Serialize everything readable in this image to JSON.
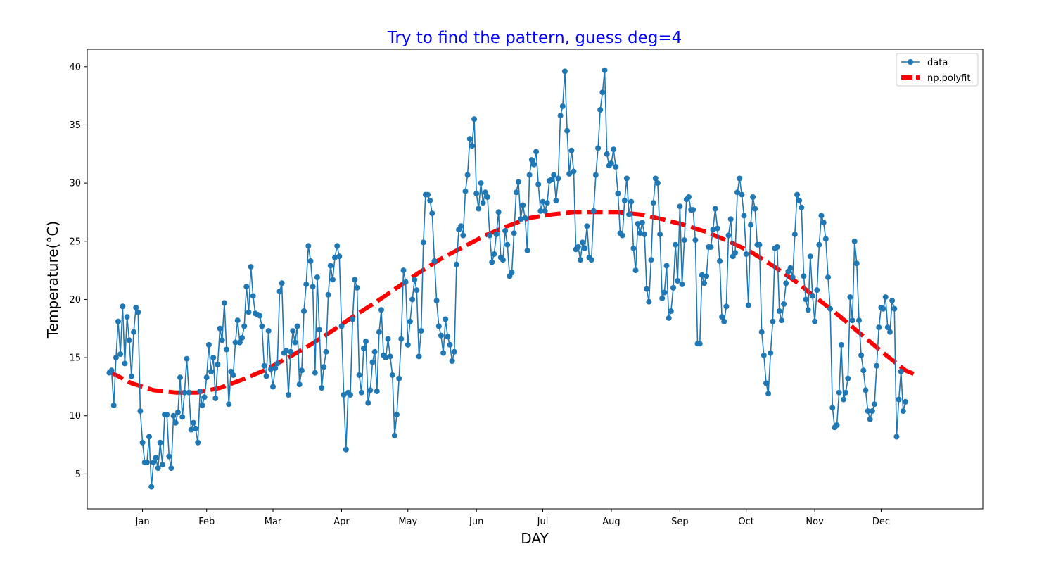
{
  "chart_data": {
    "type": "line",
    "title": "Try to find the pattern, guess deg=4",
    "title_color": "#0000ff",
    "xlabel": "DAY",
    "ylabel": "Temperature(°C)",
    "xlim": [
      -25,
      380
    ],
    "ylim": [
      2,
      41.5
    ],
    "x_ticks": [
      {
        "day": 0,
        "label": "Jan"
      },
      {
        "day": 29,
        "label": "Feb"
      },
      {
        "day": 59,
        "label": "Mar"
      },
      {
        "day": 90,
        "label": "Apr"
      },
      {
        "day": 120,
        "label": "May"
      },
      {
        "day": 151,
        "label": "Jun"
      },
      {
        "day": 181,
        "label": "Jul"
      },
      {
        "day": 212,
        "label": "Aug"
      },
      {
        "day": 243,
        "label": "Sep"
      },
      {
        "day": 273,
        "label": "Oct"
      },
      {
        "day": 304,
        "label": "Nov"
      },
      {
        "day": 334,
        "label": "Dec"
      }
    ],
    "y_ticks": [
      5,
      10,
      15,
      20,
      25,
      30,
      35,
      40
    ],
    "legend_position": "top-right",
    "series": [
      {
        "name": "data",
        "style": "line-with-markers",
        "color": "#1f77b4",
        "x_start": -15,
        "values": [
          13.7,
          13.9,
          10.9,
          15.0,
          18.1,
          15.3,
          19.4,
          14.5,
          18.5,
          16.5,
          13.4,
          17.2,
          19.3,
          18.9,
          10.4,
          7.7,
          6.0,
          6.0,
          8.2,
          3.9,
          6.0,
          6.4,
          5.5,
          7.7,
          5.8,
          10.1,
          10.1,
          6.5,
          5.5,
          10.0,
          9.4,
          10.3,
          13.3,
          9.9,
          12.0,
          14.9,
          12.0,
          8.8,
          9.4,
          8.9,
          7.7,
          12.1,
          10.9,
          11.6,
          13.3,
          16.1,
          13.8,
          15.0,
          11.5,
          14.4,
          17.5,
          16.5,
          19.7,
          15.7,
          11.0,
          13.8,
          13.5,
          16.3,
          18.2,
          16.3,
          16.7,
          17.7,
          21.1,
          18.9,
          22.8,
          20.3,
          18.8,
          18.7,
          18.6,
          17.7,
          14.3,
          13.4,
          17.3,
          14.0,
          12.5,
          14.1,
          14.5,
          20.7,
          21.4,
          15.4,
          15.6,
          11.8,
          15.5,
          17.3,
          16.3,
          17.7,
          12.7,
          13.9,
          19.0,
          21.3,
          24.6,
          23.3,
          21.1,
          13.7,
          21.9,
          17.4,
          12.4,
          14.2,
          15.5,
          20.4,
          22.9,
          21.7,
          23.6,
          24.6,
          23.7,
          17.7,
          11.8,
          7.1,
          12.0,
          11.8,
          18.3,
          21.7,
          21.0,
          13.5,
          12.0,
          15.8,
          16.4,
          11.1,
          12.2,
          14.6,
          15.5,
          12.1,
          17.2,
          19.1,
          15.2,
          15.0,
          16.6,
          15.1,
          13.5,
          8.3,
          10.1,
          13.2,
          16.6,
          22.5,
          21.5,
          16.1,
          18.1,
          20.0,
          21.7,
          20.8,
          15.1,
          17.3,
          24.9,
          29.0,
          29.0,
          28.5,
          27.4,
          23.3,
          19.9,
          17.7,
          16.9,
          15.4,
          18.3,
          16.8,
          16.1,
          14.7,
          15.5,
          23.0,
          26.0,
          26.3,
          25.5,
          29.3,
          30.7,
          33.8,
          33.2,
          35.5,
          29.1,
          27.8,
          30.0,
          28.3,
          29.2,
          28.8,
          25.5,
          23.2,
          23.9,
          25.6,
          27.5,
          23.6,
          23.4,
          25.9,
          24.7,
          22.0,
          22.3,
          25.7,
          29.2,
          30.1,
          26.9,
          28.1,
          27.0,
          24.2,
          30.7,
          32.0,
          31.6,
          32.7,
          29.9,
          27.6,
          28.4,
          27.6,
          28.3,
          30.2,
          30.3,
          30.7,
          28.5,
          30.4,
          35.8,
          36.6,
          39.6,
          34.5,
          30.8,
          32.8,
          31.0,
          24.3,
          24.5,
          23.4,
          24.9,
          24.4,
          26.3,
          23.6,
          23.4,
          27.6,
          30.7,
          33.0,
          36.3,
          37.8,
          39.7,
          32.5,
          31.5,
          31.7,
          32.9,
          31.4,
          29.1,
          25.7,
          25.5,
          28.5,
          30.4,
          27.3,
          28.4,
          24.4,
          22.5,
          26.5,
          25.7,
          26.6,
          25.6,
          20.9,
          19.8,
          23.4,
          28.3,
          30.4,
          30.0,
          25.6,
          20.1,
          20.6,
          22.9,
          18.4,
          19.0,
          21.0,
          24.7,
          21.6,
          28.0,
          21.3,
          25.1,
          28.6,
          28.8,
          27.7,
          27.7,
          25.1,
          16.2,
          16.2,
          22.1,
          21.4,
          22.0,
          24.5,
          24.5,
          26.0,
          27.8,
          26.1,
          23.3,
          18.5,
          18.1,
          19.4,
          25.5,
          26.9,
          23.7,
          24.0,
          29.2,
          30.4,
          29.0,
          27.2,
          23.9,
          19.5,
          26.4,
          28.8,
          27.8,
          24.7,
          24.7,
          17.2,
          15.2,
          12.8,
          11.9,
          15.4,
          18.1,
          24.4,
          24.5,
          19.0,
          18.2,
          19.6,
          21.4,
          22.4,
          22.7,
          21.9,
          25.6,
          29.0,
          28.5,
          27.9,
          22.0,
          20.0,
          19.1,
          23.7,
          20.3,
          18.1,
          20.8,
          24.7,
          27.2,
          26.6,
          25.2,
          21.9,
          19.2,
          10.7,
          9.0,
          9.2,
          12.0,
          16.1,
          11.4,
          12.0,
          13.2,
          20.2,
          18.2,
          25.0,
          23.1,
          18.2,
          15.2,
          13.9,
          12.2,
          10.4,
          9.7,
          10.4,
          11.0,
          14.3,
          17.6,
          19.3,
          19.2,
          20.2,
          17.6,
          17.2,
          19.9,
          19.2,
          8.2,
          11.4,
          13.8,
          10.4,
          11.2
        ]
      },
      {
        "name": "np.polyfit",
        "style": "dashed-thick",
        "color": "#ff0000",
        "x": [
          -15,
          -5,
          5,
          15,
          25,
          35,
          45,
          55,
          65,
          75,
          85,
          95,
          105,
          115,
          125,
          135,
          145,
          155,
          165,
          175,
          185,
          195,
          205,
          215,
          225,
          235,
          245,
          255,
          265,
          275,
          285,
          295,
          305,
          315,
          325,
          335,
          345,
          350
        ],
        "values": [
          13.8,
          12.8,
          12.2,
          12.0,
          12.0,
          12.4,
          13.1,
          13.9,
          14.9,
          16.0,
          17.2,
          18.5,
          19.7,
          21.0,
          22.3,
          23.5,
          24.5,
          25.5,
          26.3,
          27.0,
          27.3,
          27.5,
          27.5,
          27.5,
          27.3,
          26.9,
          26.4,
          25.8,
          25.0,
          24.1,
          22.9,
          21.6,
          20.1,
          18.6,
          17.0,
          15.4,
          13.9,
          13.5
        ]
      }
    ]
  }
}
